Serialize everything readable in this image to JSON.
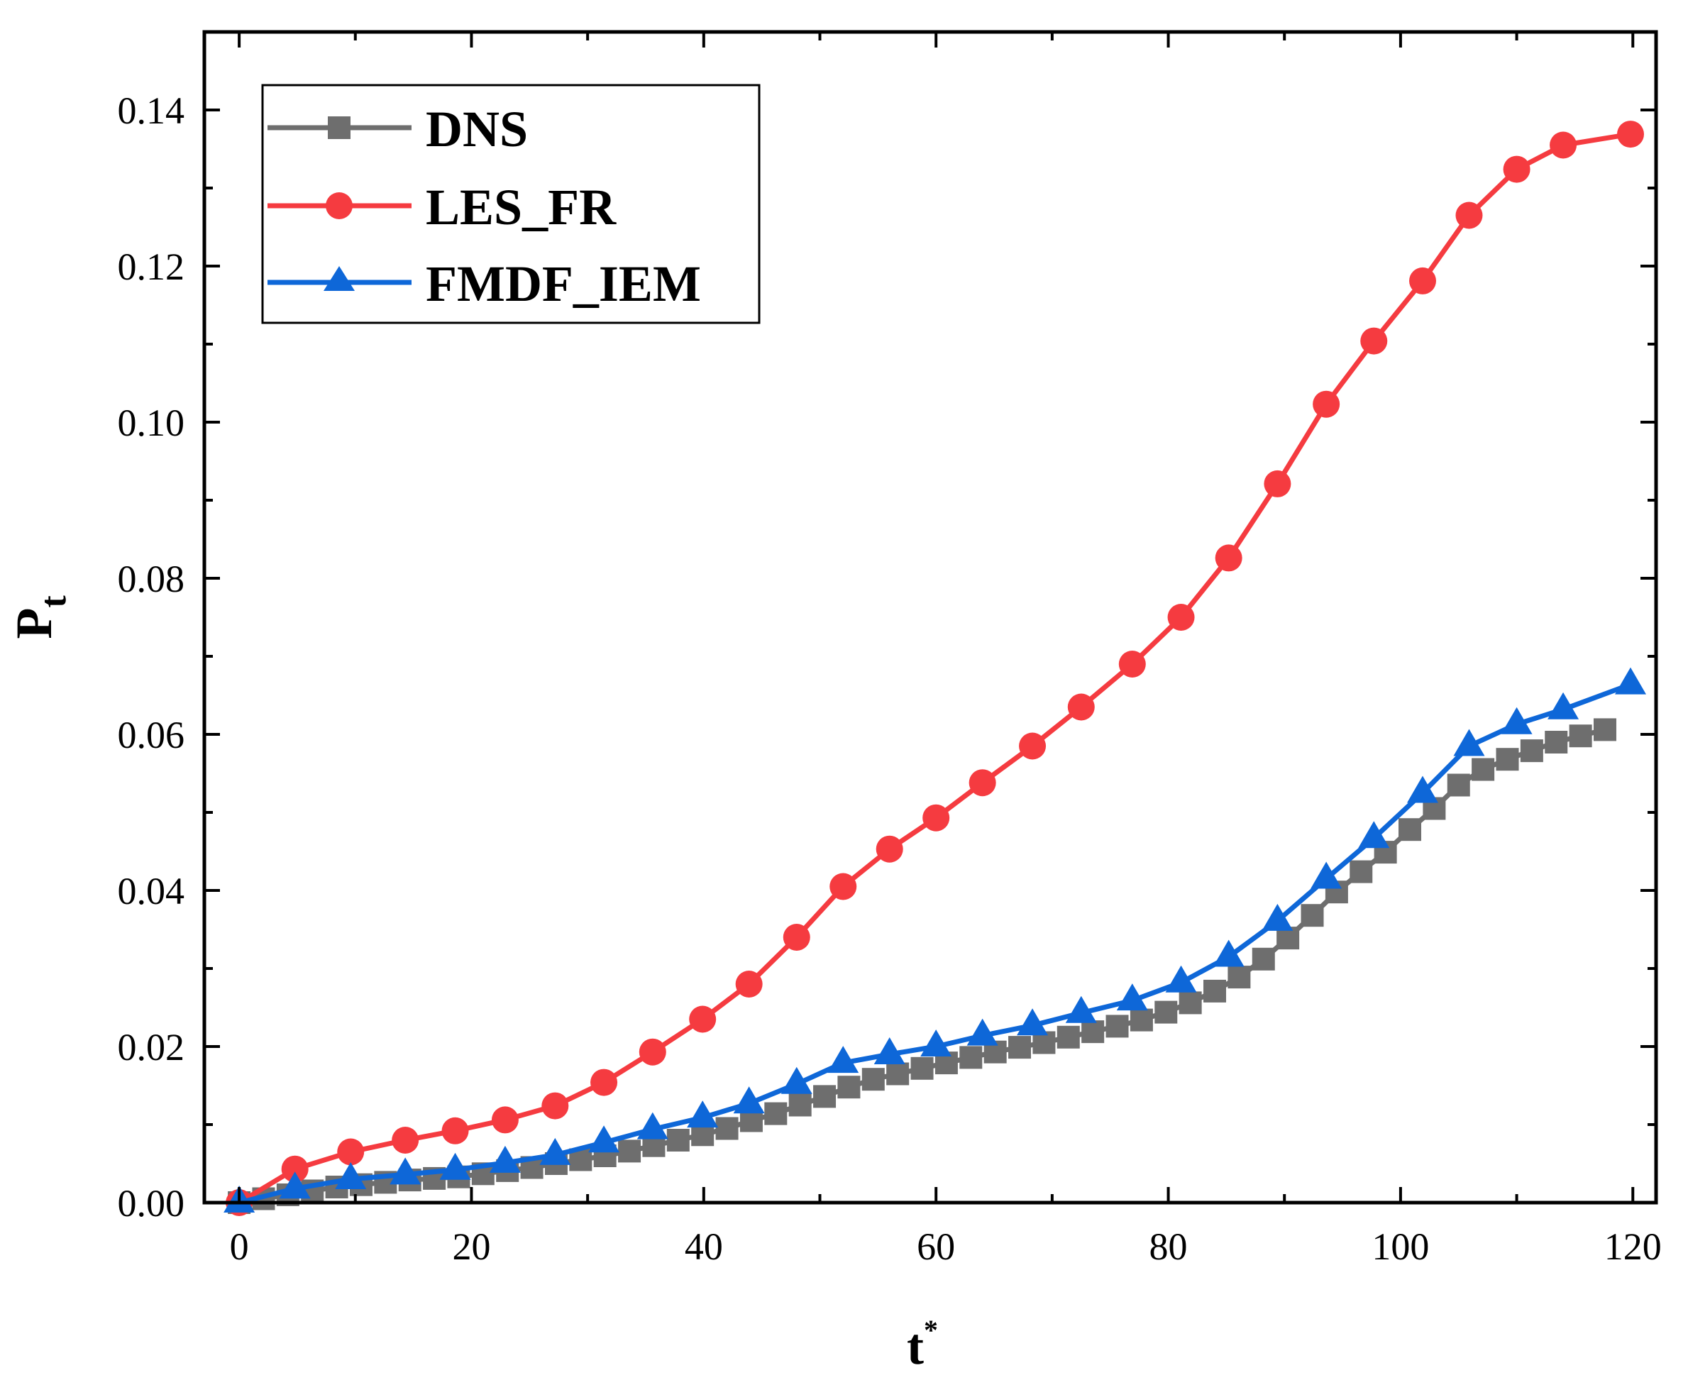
{
  "chart_data": {
    "type": "line",
    "title": "",
    "xlabel": "t",
    "xlabel_superscript": "*",
    "ylabel": "P",
    "ylabel_subscript": "t",
    "xlim": [
      -3,
      122
    ],
    "ylim": [
      0,
      0.15
    ],
    "xticks": [
      0,
      20,
      40,
      60,
      80,
      100,
      120
    ],
    "xtick_labels": [
      "0",
      "20",
      "40",
      "60",
      "80",
      "100",
      "120"
    ],
    "yticks": [
      0,
      0.02,
      0.04,
      0.06,
      0.08,
      0.1,
      0.12,
      0.14
    ],
    "ytick_labels": [
      "0.00",
      "0.02",
      "0.04",
      "0.06",
      "0.08",
      "0.10",
      "0.12",
      "0.14"
    ],
    "grid": false,
    "legend_position": "top-left",
    "series": [
      {
        "name": "DNS",
        "color": "#6e6e6e",
        "marker": "square",
        "x": [
          0,
          2.1,
          4.2,
          6.3,
          8.4,
          10.5,
          12.6,
          14.7,
          16.8,
          18.9,
          21,
          23.1,
          25.2,
          27.3,
          29.4,
          31.5,
          33.6,
          35.7,
          37.8,
          39.9,
          42,
          44.1,
          46.2,
          48.3,
          50.4,
          52.5,
          54.6,
          56.7,
          58.8,
          60.9,
          63,
          65.1,
          67.2,
          69.3,
          71.4,
          73.5,
          75.6,
          77.7,
          79.8,
          81.9,
          84,
          86.1,
          88.2,
          90.3,
          92.4,
          94.5,
          96.6,
          98.7,
          100.8,
          102.9,
          105,
          107.1,
          109.2,
          111.3,
          113.4,
          115.5,
          117.6
        ],
        "y": [
          0.0,
          0.0005,
          0.001,
          0.0015,
          0.002,
          0.0023,
          0.0026,
          0.0029,
          0.0031,
          0.0033,
          0.0037,
          0.0041,
          0.0045,
          0.005,
          0.0055,
          0.006,
          0.0066,
          0.0073,
          0.008,
          0.0087,
          0.0095,
          0.0105,
          0.0114,
          0.0125,
          0.0136,
          0.0148,
          0.0158,
          0.0165,
          0.0172,
          0.0179,
          0.0186,
          0.0193,
          0.0199,
          0.0205,
          0.0212,
          0.0219,
          0.0226,
          0.0234,
          0.0244,
          0.0256,
          0.0271,
          0.0289,
          0.0312,
          0.0339,
          0.0368,
          0.0398,
          0.0424,
          0.0449,
          0.0478,
          0.0505,
          0.0535,
          0.0555,
          0.0568,
          0.0579,
          0.059,
          0.0598,
          0.0606
        ]
      },
      {
        "name": "LES_FR",
        "color": "#f53b40",
        "marker": "circle",
        "x": [
          0,
          4.8,
          9.6,
          14.3,
          18.6,
          22.9,
          27.2,
          31.4,
          35.6,
          39.9,
          43.9,
          48,
          52,
          56,
          60,
          64,
          68.3,
          72.5,
          76.9,
          81.1,
          85.2,
          89.4,
          93.6,
          97.7,
          101.9,
          105.9,
          110,
          114,
          119.8
        ],
        "y": [
          0.0,
          0.0043,
          0.0065,
          0.008,
          0.0092,
          0.0106,
          0.0124,
          0.0154,
          0.0193,
          0.0235,
          0.028,
          0.034,
          0.0405,
          0.0453,
          0.0493,
          0.0538,
          0.0585,
          0.0635,
          0.069,
          0.075,
          0.0826,
          0.0921,
          0.1023,
          0.1104,
          0.1181,
          0.1265,
          0.1324,
          0.1355,
          0.1369
        ]
      },
      {
        "name": "FMDF_IEM",
        "color": "#0e67d8",
        "marker": "triangle",
        "x": [
          0,
          4.8,
          9.6,
          14.3,
          18.6,
          22.9,
          27.2,
          31.4,
          35.6,
          39.9,
          43.9,
          48,
          52,
          56,
          60,
          64,
          68.3,
          72.5,
          76.9,
          81.1,
          85.2,
          89.4,
          93.6,
          97.7,
          101.9,
          105.9,
          110,
          114,
          119.8
        ],
        "y": [
          0.0,
          0.0018,
          0.003,
          0.0036,
          0.0042,
          0.0051,
          0.0061,
          0.0077,
          0.0094,
          0.0109,
          0.0127,
          0.0152,
          0.0179,
          0.019,
          0.02,
          0.0214,
          0.0227,
          0.0243,
          0.0259,
          0.0282,
          0.0315,
          0.0361,
          0.0415,
          0.0467,
          0.0525,
          0.0585,
          0.0613,
          0.0632,
          0.0664
        ]
      }
    ]
  }
}
